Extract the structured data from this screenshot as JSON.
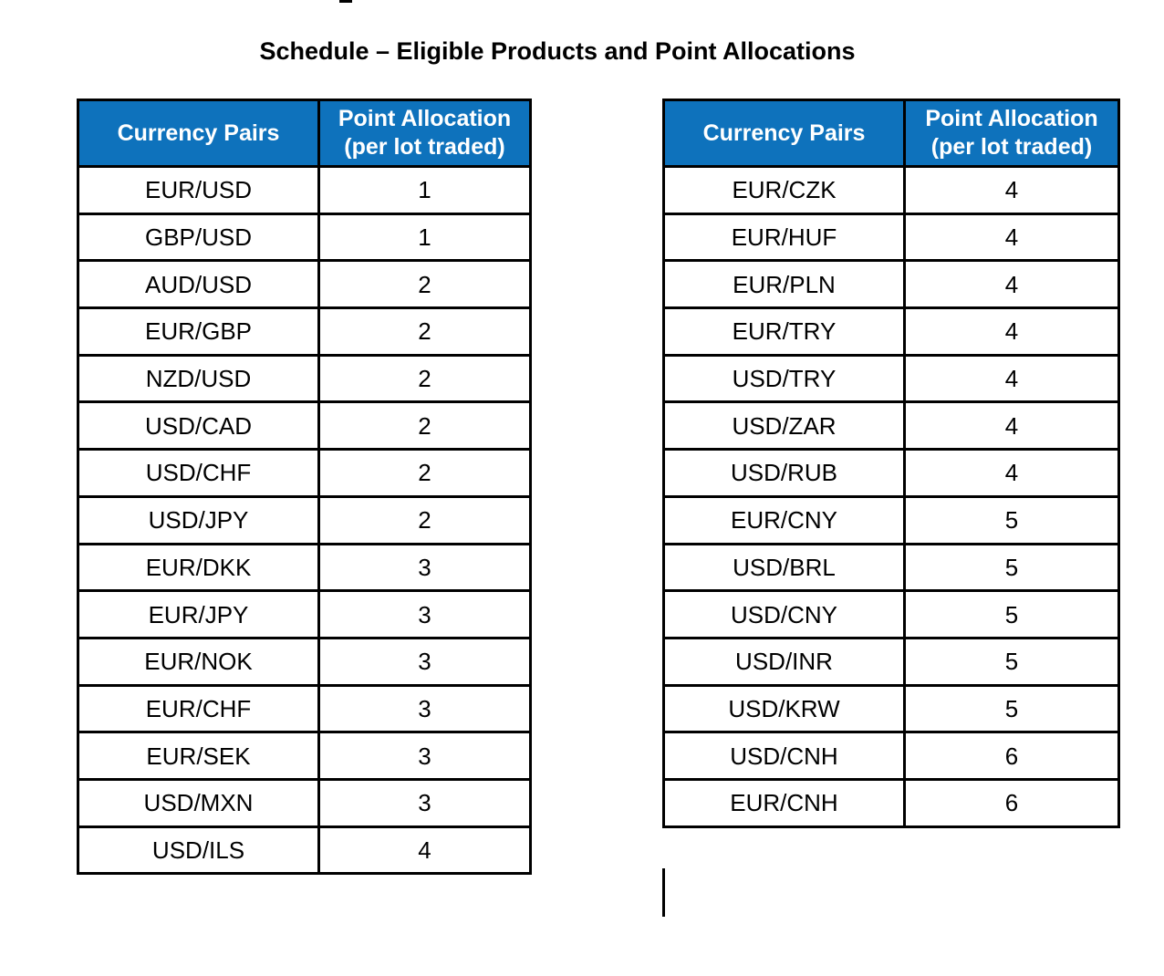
{
  "title": "Schedule – Eligible Products and Point Allocations",
  "colors": {
    "header_bg": "#0E72BC",
    "header_text": "#FFFFFF",
    "border": "#000000",
    "body_text": "#000000"
  },
  "left_table": {
    "col_headers": [
      "Currency Pairs",
      "Point Allocation\n(per lot traded)"
    ],
    "rows": [
      {
        "pair": "EUR/USD",
        "points": "1"
      },
      {
        "pair": "GBP/USD",
        "points": "1"
      },
      {
        "pair": "AUD/USD",
        "points": "2"
      },
      {
        "pair": "EUR/GBP",
        "points": "2"
      },
      {
        "pair": "NZD/USD",
        "points": "2"
      },
      {
        "pair": "USD/CAD",
        "points": "2"
      },
      {
        "pair": "USD/CHF",
        "points": "2"
      },
      {
        "pair": "USD/JPY",
        "points": "2"
      },
      {
        "pair": "EUR/DKK",
        "points": "3"
      },
      {
        "pair": "EUR/JPY",
        "points": "3"
      },
      {
        "pair": "EUR/NOK",
        "points": "3"
      },
      {
        "pair": "EUR/CHF",
        "points": "3"
      },
      {
        "pair": "EUR/SEK",
        "points": "3"
      },
      {
        "pair": "USD/MXN",
        "points": "3"
      },
      {
        "pair": "USD/ILS",
        "points": "4"
      }
    ]
  },
  "right_table": {
    "col_headers": [
      "Currency Pairs",
      "Point Allocation\n(per lot traded)"
    ],
    "rows": [
      {
        "pair": "EUR/CZK",
        "points": "4"
      },
      {
        "pair": "EUR/HUF",
        "points": "4"
      },
      {
        "pair": "EUR/PLN",
        "points": "4"
      },
      {
        "pair": "EUR/TRY",
        "points": "4"
      },
      {
        "pair": "USD/TRY",
        "points": "4"
      },
      {
        "pair": "USD/ZAR",
        "points": "4"
      },
      {
        "pair": "USD/RUB",
        "points": "4"
      },
      {
        "pair": "EUR/CNY",
        "points": "5"
      },
      {
        "pair": "USD/BRL",
        "points": "5"
      },
      {
        "pair": "USD/CNY",
        "points": "5"
      },
      {
        "pair": "USD/INR",
        "points": "5"
      },
      {
        "pair": "USD/KRW",
        "points": "5"
      },
      {
        "pair": "USD/CNH",
        "points": "6"
      },
      {
        "pair": "EUR/CNH",
        "points": "6"
      }
    ]
  }
}
